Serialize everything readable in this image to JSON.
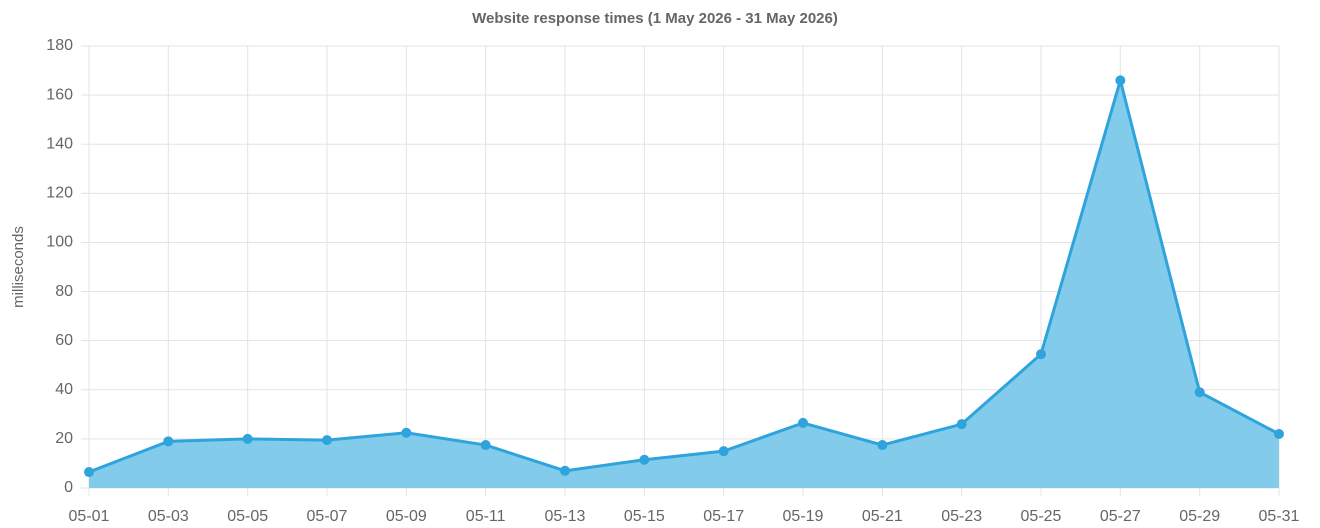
{
  "chart_data": {
    "type": "area",
    "title": "Website response times (1 May 2026 - 31 May 2026)",
    "y_label": "milliseconds",
    "categories": [
      "05-01",
      "05-03",
      "05-05",
      "05-07",
      "05-09",
      "05-11",
      "05-13",
      "05-15",
      "05-17",
      "05-19",
      "05-21",
      "05-23",
      "05-25",
      "05-27",
      "05-29",
      "05-31"
    ],
    "series": [
      {
        "color": "#2fa4dc",
        "fill": "#82cbeb",
        "values": [
          6.5,
          19,
          20,
          19.5,
          22.5,
          17.5,
          7,
          11.5,
          15,
          26.5,
          17.5,
          26,
          54.5,
          166,
          39,
          22
        ]
      }
    ],
    "ylim": [
      0,
      180
    ],
    "yticks": [
      0,
      20,
      40,
      60,
      80,
      100,
      120,
      140,
      160,
      180
    ],
    "grid": true
  }
}
